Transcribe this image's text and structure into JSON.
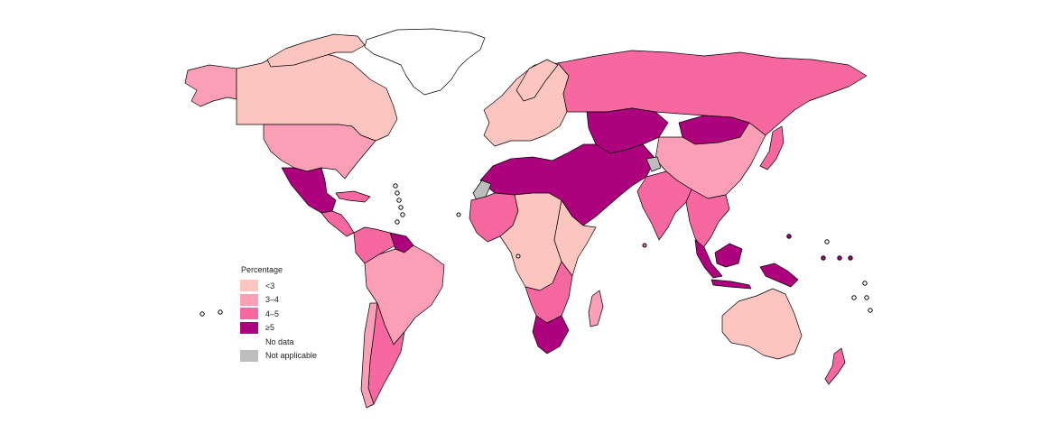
{
  "legend": {
    "title": "Percentage",
    "items": [
      {
        "key": "lt3",
        "label": "<3",
        "color": "#fcc5c0"
      },
      {
        "key": "3to4",
        "label": "3–4",
        "color": "#fa9fb5"
      },
      {
        "key": "4to5",
        "label": "4–5",
        "color": "#f768a1"
      },
      {
        "key": "ge5",
        "label": "≥5",
        "color": "#ae017e"
      },
      {
        "key": "nodata",
        "label": "No data",
        "color": "#ffffff"
      },
      {
        "key": "na",
        "label": "Not applicable",
        "color": "#bdbdbd"
      }
    ]
  },
  "regions": [
    {
      "name": "greenland",
      "category": "nodata"
    },
    {
      "name": "alaska",
      "category": "3to4"
    },
    {
      "name": "canada",
      "category": "lt3"
    },
    {
      "name": "usa",
      "category": "3to4"
    },
    {
      "name": "mexico",
      "category": "ge5"
    },
    {
      "name": "central-america",
      "category": "4to5"
    },
    {
      "name": "caribbean",
      "category": "4to5"
    },
    {
      "name": "colombia-venezuela",
      "category": "4to5"
    },
    {
      "name": "guianas",
      "category": "ge5"
    },
    {
      "name": "south-america",
      "category": "3to4"
    },
    {
      "name": "argentina",
      "category": "4to5"
    },
    {
      "name": "chile",
      "category": "3to4"
    },
    {
      "name": "europe",
      "category": "lt3"
    },
    {
      "name": "russia",
      "category": "4to5"
    },
    {
      "name": "central-asia",
      "category": "ge5"
    },
    {
      "name": "mongolia",
      "category": "ge5"
    },
    {
      "name": "china",
      "category": "3to4"
    },
    {
      "name": "middle-east-north-africa",
      "category": "ge5"
    },
    {
      "name": "western-sahara",
      "category": "na"
    },
    {
      "name": "caucasus-na",
      "category": "na"
    },
    {
      "name": "india",
      "category": "4to5"
    },
    {
      "name": "southeast-asia",
      "category": "4to5"
    },
    {
      "name": "japan",
      "category": "4to5"
    },
    {
      "name": "west-africa",
      "category": "4to5"
    },
    {
      "name": "central-africa",
      "category": "lt3"
    },
    {
      "name": "east-africa",
      "category": "lt3"
    },
    {
      "name": "southern-africa",
      "category": "4to5"
    },
    {
      "name": "south-africa",
      "category": "ge5"
    },
    {
      "name": "madagascar",
      "category": "3to4"
    },
    {
      "name": "indonesia",
      "category": "ge5"
    },
    {
      "name": "papua",
      "category": "ge5"
    },
    {
      "name": "australia",
      "category": "lt3"
    },
    {
      "name": "new-zealand",
      "category": "4to5"
    }
  ]
}
